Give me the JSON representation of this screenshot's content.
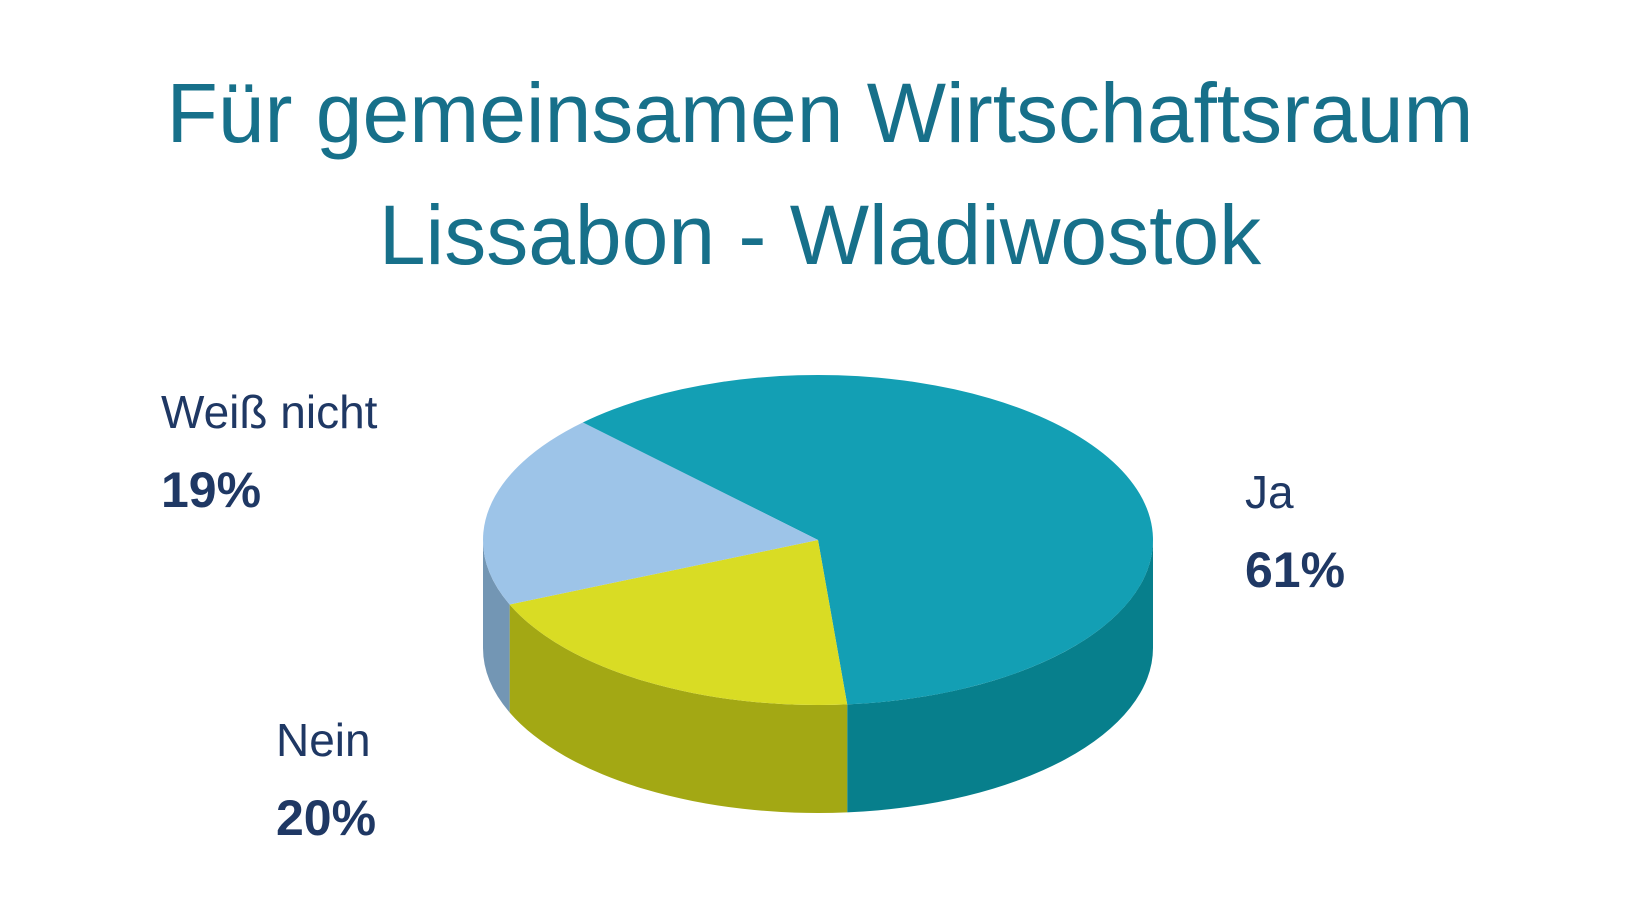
{
  "chart_data": {
    "type": "pie3d",
    "title": "Für gemeinsamen Wirtschaftsraum Lissabon - Wladiwostok",
    "categories": [
      "Ja",
      "Nein",
      "Weiß nicht"
    ],
    "values": [
      61,
      20,
      19
    ],
    "value_labels": [
      "61%",
      "20%",
      "19%"
    ],
    "colors": [
      "#139fb4",
      "#d9dc24",
      "#9dc4e8"
    ],
    "side_colors": [
      "#077f8c",
      "#a3a814",
      "#7396b4"
    ]
  }
}
